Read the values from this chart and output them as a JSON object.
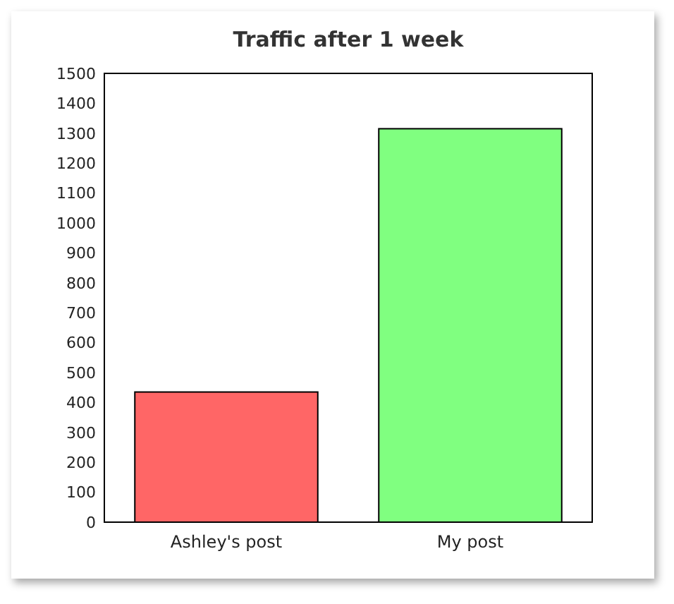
{
  "chart_data": {
    "type": "bar",
    "title": "Traffic after 1 week",
    "categories": [
      "Ashley's post",
      "My post"
    ],
    "values": [
      435,
      1315
    ],
    "colors": [
      "#ff6666",
      "#80ff80"
    ],
    "ylim": [
      0,
      1500
    ],
    "yticks": [
      0,
      100,
      200,
      300,
      400,
      500,
      600,
      700,
      800,
      900,
      1000,
      1100,
      1200,
      1300,
      1400,
      1500
    ],
    "grid": false
  }
}
